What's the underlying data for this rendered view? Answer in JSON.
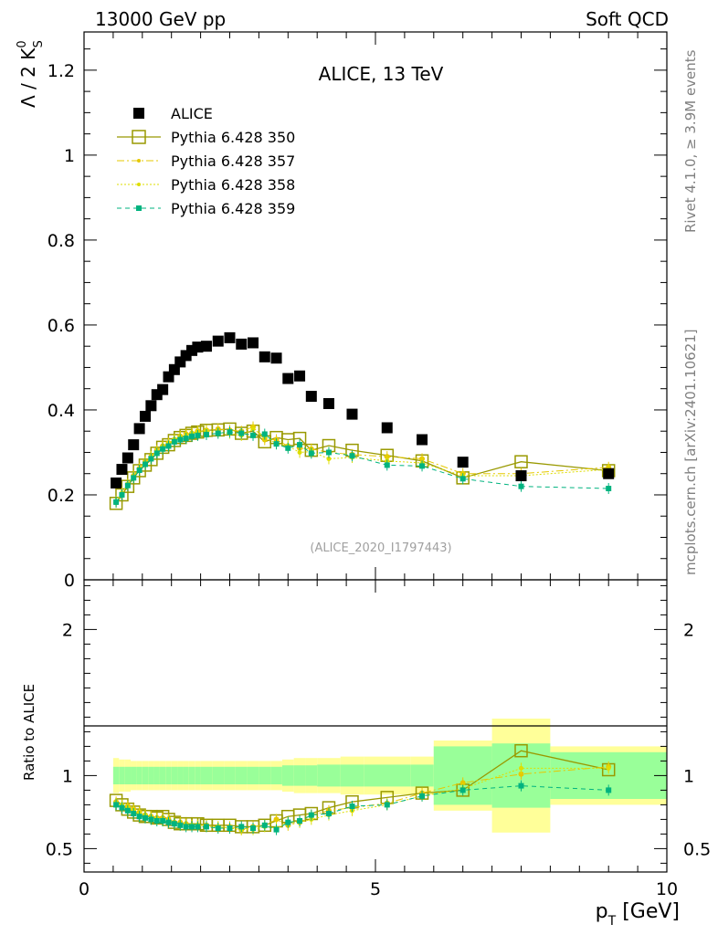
{
  "header": {
    "left_title": "13000 GeV pp",
    "right_title": "Soft QCD",
    "plot_title": "ALICE, 13 TeV",
    "analysis_id": "(ALICE_2020_I1797443)",
    "side_rivet": "Rivet 4.1.0, ≥ 3.9M events",
    "side_mcplots": "mcplots.cern.ch [arXiv:2401.10621]"
  },
  "axes": {
    "ylabel_main": "Λ / 2 K⁰S",
    "ylabel_ratio": "Ratio to ALICE",
    "xlabel": "p_T [GeV]"
  },
  "chart_data": [
    {
      "type": "scatter",
      "title": "ALICE, 13 TeV",
      "xlabel": "p_T [GeV]",
      "ylabel": "Λ / 2 K0S",
      "xlim": [
        0,
        10
      ],
      "ylim": [
        0,
        1.29
      ],
      "x_ticks": [
        0,
        5,
        10
      ],
      "y_ticks": [
        0,
        0.2,
        0.4,
        0.6,
        0.8,
        1,
        1.2
      ],
      "y_tick_labels": [
        "0",
        "0.2",
        "0.4",
        "0.6",
        "0.8",
        "1",
        "1.2"
      ],
      "legend": [
        "ALICE",
        "Pythia 6.428 350",
        "Pythia 6.428 357",
        "Pythia 6.428 358",
        "Pythia 6.428 359"
      ],
      "x": [
        0.55,
        0.65,
        0.75,
        0.85,
        0.95,
        1.05,
        1.15,
        1.25,
        1.35,
        1.45,
        1.55,
        1.65,
        1.75,
        1.85,
        1.95,
        2.1,
        2.3,
        2.5,
        2.7,
        2.9,
        3.1,
        3.3,
        3.5,
        3.7,
        3.9,
        4.2,
        4.6,
        5.2,
        5.8,
        6.5,
        7.5,
        9.0
      ],
      "series": [
        {
          "name": "ALICE",
          "color": "#000000",
          "values": [
            0.228,
            0.26,
            0.287,
            0.318,
            0.356,
            0.385,
            0.41,
            0.436,
            0.448,
            0.478,
            0.495,
            0.513,
            0.528,
            0.54,
            0.548,
            0.55,
            0.562,
            0.57,
            0.555,
            0.558,
            0.525,
            0.522,
            0.474,
            0.48,
            0.432,
            0.415,
            0.39,
            0.358,
            0.33,
            0.277,
            0.245,
            0.25
          ]
        },
        {
          "name": "Pythia 6.428 350",
          "color": "#999900",
          "values": [
            0.18,
            0.2,
            0.22,
            0.24,
            0.257,
            0.27,
            0.283,
            0.298,
            0.312,
            0.318,
            0.328,
            0.335,
            0.34,
            0.345,
            0.348,
            0.352,
            0.353,
            0.355,
            0.345,
            0.35,
            0.325,
            0.335,
            0.33,
            0.333,
            0.305,
            0.316,
            0.305,
            0.293,
            0.28,
            0.24,
            0.278,
            0.257
          ]
        },
        {
          "name": "Pythia 6.428 357",
          "color": "#e6c800",
          "values": [
            0.182,
            0.202,
            0.225,
            0.245,
            0.262,
            0.278,
            0.29,
            0.305,
            0.315,
            0.322,
            0.33,
            0.338,
            0.343,
            0.345,
            0.35,
            0.352,
            0.355,
            0.352,
            0.35,
            0.36,
            0.33,
            0.33,
            0.315,
            0.31,
            0.308,
            0.3,
            0.295,
            0.29,
            0.285,
            0.25,
            0.25,
            0.265
          ]
        },
        {
          "name": "Pythia 6.428 358",
          "color": "#dede00",
          "values": [
            0.185,
            0.205,
            0.225,
            0.242,
            0.26,
            0.275,
            0.29,
            0.302,
            0.312,
            0.32,
            0.33,
            0.335,
            0.34,
            0.345,
            0.348,
            0.35,
            0.348,
            0.345,
            0.34,
            0.355,
            0.338,
            0.32,
            0.315,
            0.3,
            0.302,
            0.285,
            0.288,
            0.28,
            0.275,
            0.245,
            0.245,
            0.26
          ]
        },
        {
          "name": "Pythia 6.428 359",
          "color": "#00b37f",
          "values": [
            0.183,
            0.2,
            0.222,
            0.24,
            0.258,
            0.272,
            0.285,
            0.298,
            0.308,
            0.315,
            0.325,
            0.33,
            0.333,
            0.338,
            0.34,
            0.342,
            0.345,
            0.348,
            0.345,
            0.34,
            0.343,
            0.32,
            0.31,
            0.318,
            0.298,
            0.3,
            0.292,
            0.27,
            0.268,
            0.238,
            0.22,
            0.215
          ]
        }
      ]
    },
    {
      "type": "line",
      "title": "Ratio to ALICE",
      "xlabel": "p_T [GeV]",
      "ylabel": "Ratio to ALICE",
      "xlim": [
        0,
        10
      ],
      "ylim": [
        0.34,
        2.34
      ],
      "y_ticks": [
        0.5,
        1,
        2
      ],
      "y_tick_labels": [
        "0.5",
        "1",
        "2"
      ],
      "x": [
        0.55,
        0.65,
        0.75,
        0.85,
        0.95,
        1.05,
        1.15,
        1.25,
        1.35,
        1.45,
        1.55,
        1.65,
        1.75,
        1.85,
        1.95,
        2.1,
        2.3,
        2.5,
        2.7,
        2.9,
        3.1,
        3.3,
        3.5,
        3.7,
        3.9,
        4.2,
        4.6,
        5.2,
        5.8,
        6.5,
        7.5,
        9.0
      ],
      "bin_edges": [
        0.5,
        0.6,
        0.7,
        0.8,
        0.9,
        1.0,
        1.1,
        1.2,
        1.3,
        1.4,
        1.5,
        1.6,
        1.7,
        1.8,
        1.9,
        2.0,
        2.2,
        2.4,
        2.6,
        2.8,
        3.0,
        3.2,
        3.4,
        3.6,
        3.8,
        4.0,
        4.4,
        4.8,
        5.6,
        6.0,
        7.0,
        8.0,
        10.0
      ],
      "band_stat": [
        0.06,
        0.06,
        0.06,
        0.06,
        0.06,
        0.06,
        0.06,
        0.06,
        0.06,
        0.06,
        0.06,
        0.06,
        0.06,
        0.06,
        0.06,
        0.06,
        0.06,
        0.06,
        0.06,
        0.06,
        0.06,
        0.06,
        0.07,
        0.07,
        0.07,
        0.075,
        0.075,
        0.075,
        0.075,
        0.2,
        0.22,
        0.16,
        0.16
      ],
      "band_total": [
        0.12,
        0.11,
        0.11,
        0.1,
        0.1,
        0.1,
        0.1,
        0.1,
        0.1,
        0.1,
        0.1,
        0.1,
        0.1,
        0.1,
        0.1,
        0.1,
        0.1,
        0.1,
        0.1,
        0.1,
        0.1,
        0.1,
        0.11,
        0.12,
        0.12,
        0.12,
        0.13,
        0.13,
        0.13,
        0.24,
        0.39,
        0.2,
        0.2
      ],
      "series": [
        {
          "name": "Pythia 6.428 350",
          "color": "#999900",
          "values": [
            0.83,
            0.8,
            0.77,
            0.75,
            0.73,
            0.72,
            0.72,
            0.71,
            0.72,
            0.7,
            0.68,
            0.67,
            0.67,
            0.67,
            0.67,
            0.66,
            0.66,
            0.66,
            0.65,
            0.65,
            0.66,
            0.69,
            0.72,
            0.73,
            0.74,
            0.78,
            0.82,
            0.85,
            0.88,
            0.9,
            1.17,
            1.04
          ]
        },
        {
          "name": "Pythia 6.428 357",
          "color": "#e6c800",
          "values": [
            0.82,
            0.79,
            0.79,
            0.77,
            0.75,
            0.73,
            0.72,
            0.71,
            0.71,
            0.7,
            0.68,
            0.68,
            0.67,
            0.66,
            0.66,
            0.66,
            0.65,
            0.65,
            0.63,
            0.65,
            0.66,
            0.7,
            0.66,
            0.68,
            0.73,
            0.76,
            0.78,
            0.81,
            0.88,
            0.95,
            1.01,
            1.06
          ]
        },
        {
          "name": "Pythia 6.428 358",
          "color": "#dede00",
          "values": [
            0.81,
            0.8,
            0.78,
            0.76,
            0.74,
            0.73,
            0.71,
            0.7,
            0.69,
            0.69,
            0.67,
            0.66,
            0.66,
            0.66,
            0.66,
            0.65,
            0.65,
            0.64,
            0.63,
            0.63,
            0.65,
            0.64,
            0.68,
            0.68,
            0.7,
            0.73,
            0.76,
            0.8,
            0.86,
            0.91,
            1.05,
            1.05
          ]
        },
        {
          "name": "Pythia 6.428 359",
          "color": "#00b37f",
          "values": [
            0.8,
            0.78,
            0.76,
            0.74,
            0.72,
            0.71,
            0.7,
            0.69,
            0.69,
            0.68,
            0.67,
            0.66,
            0.65,
            0.65,
            0.65,
            0.65,
            0.64,
            0.64,
            0.65,
            0.64,
            0.66,
            0.63,
            0.68,
            0.69,
            0.73,
            0.74,
            0.79,
            0.8,
            0.86,
            0.9,
            0.93,
            0.9
          ]
        }
      ]
    }
  ]
}
